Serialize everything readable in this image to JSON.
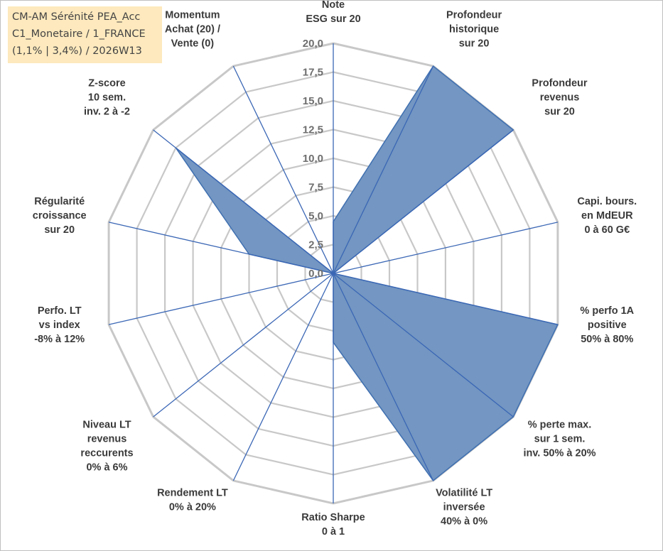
{
  "header": {
    "fund_name": "CM-AM Sérénité PEA_Acc",
    "category": "C1_Monetaire / 1_FRANCE",
    "stats": "(1,1% | 3,4%) / 2026W13"
  },
  "colors": {
    "fill": "#7396c2",
    "stroke": "#3f6fb0",
    "grid": "#c8c8c8",
    "spoke": "#3b67b5",
    "header_bg": "#fde9bd"
  },
  "chart_data": {
    "type": "radar",
    "rmin": 0,
    "rmax": 20,
    "ticks": [
      "0,0",
      "2,5",
      "5,0",
      "7,5",
      "10,0",
      "12,5",
      "15,0",
      "17,5",
      "20,0"
    ],
    "axes": [
      {
        "label": [
          "Note",
          "ESG sur 20"
        ],
        "value": 4.5
      },
      {
        "label": [
          "Profondeur",
          "historique",
          "sur 20"
        ],
        "value": 20
      },
      {
        "label": [
          "Profondeur",
          "revenus",
          "sur 20"
        ],
        "value": 20
      },
      {
        "label": [
          "Capi. bours.",
          "en MdEUR",
          "0 à 60 G€"
        ],
        "value": 0
      },
      {
        "label": [
          "% perfo 1A",
          "positive",
          "50% à 80%"
        ],
        "value": 20
      },
      {
        "label": [
          "% perte max.",
          "sur 1 sem.",
          "inv. 50% à 20%"
        ],
        "value": 20
      },
      {
        "label": [
          "Volatilité LT",
          "inversée",
          "40% à 0%"
        ],
        "value": 20
      },
      {
        "label": [
          "Ratio Sharpe",
          "0 à 1"
        ],
        "value": 6
      },
      {
        "label": [
          "Rendement LT",
          "0% à 20%"
        ],
        "value": 0
      },
      {
        "label": [
          "Niveau LT",
          "revenus",
          "reccurents",
          "0% à 6%"
        ],
        "value": 0
      },
      {
        "label": [
          "Perfo. LT",
          "vs index",
          "-8% à 12%"
        ],
        "value": 0
      },
      {
        "label": [
          "Régularité",
          "croissance",
          "sur 20"
        ],
        "value": 7.5
      },
      {
        "label": [
          "Z-score",
          "10 sem.",
          "inv. 2 à -2"
        ],
        "value": 17.5
      },
      {
        "label": [
          "Momentum",
          "Achat (20) /",
          "Vente (0)"
        ],
        "value": 0
      }
    ]
  }
}
